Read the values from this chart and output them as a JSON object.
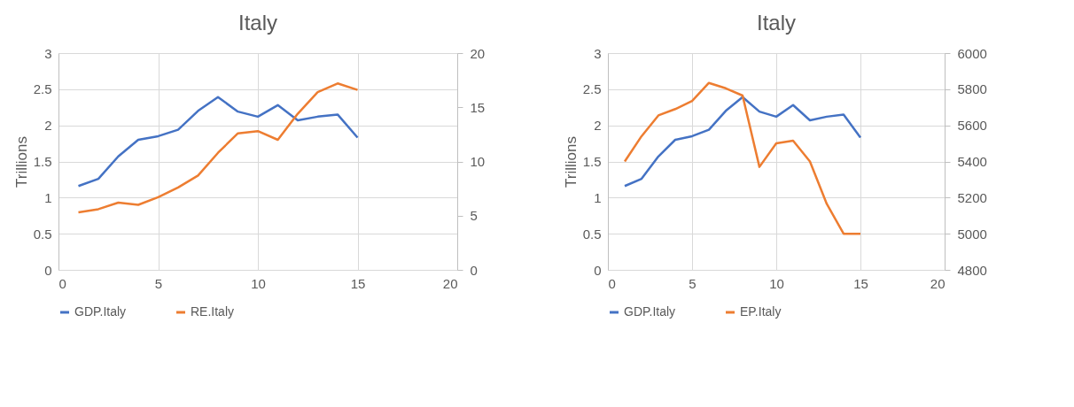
{
  "chart_data": [
    {
      "type": "line",
      "title": "Italy",
      "ylabel": "Trillions",
      "x": [
        1,
        2,
        3,
        4,
        5,
        6,
        7,
        8,
        9,
        10,
        11,
        12,
        13,
        14,
        15
      ],
      "series": [
        {
          "name": "GDP.Italy",
          "color": "#4472c4",
          "values": [
            1.16,
            1.26,
            1.57,
            1.8,
            1.85,
            1.94,
            2.2,
            2.39,
            2.19,
            2.12,
            2.28,
            2.07,
            2.12,
            2.15,
            1.83
          ]
        },
        {
          "name": "RE.Italy",
          "color": "#ed7d31",
          "axis": "y2",
          "values": [
            5.3,
            5.6,
            6.2,
            6.0,
            6.7,
            7.6,
            8.7,
            10.8,
            12.6,
            12.8,
            12.0,
            14.4,
            16.4,
            17.2,
            16.6
          ]
        }
      ],
      "xlim": [
        0,
        20
      ],
      "xticks": [
        0,
        5,
        10,
        15,
        20
      ],
      "ylim": [
        0,
        3
      ],
      "yticks": [
        0,
        0.5,
        1,
        1.5,
        2,
        2.5,
        3
      ],
      "y2lim": [
        0,
        20
      ],
      "y2ticks": [
        0,
        5,
        10,
        15,
        20
      ],
      "grid": true,
      "legend": "bottom"
    },
    {
      "type": "line",
      "title": "Italy",
      "ylabel": "Trillions",
      "x": [
        1,
        2,
        3,
        4,
        5,
        6,
        7,
        8,
        9,
        10,
        11,
        12,
        13,
        14,
        15
      ],
      "series": [
        {
          "name": "GDP.Italy",
          "color": "#4472c4",
          "values": [
            1.16,
            1.26,
            1.57,
            1.8,
            1.85,
            1.94,
            2.2,
            2.39,
            2.19,
            2.12,
            2.28,
            2.07,
            2.12,
            2.15,
            1.83
          ]
        },
        {
          "name": "EP.Italy",
          "color": "#ed7d31",
          "axis": "y2",
          "values": [
            5400,
            5540,
            5655,
            5690,
            5735,
            5835,
            5805,
            5765,
            5370,
            5500,
            5515,
            5400,
            5165,
            5000,
            5000
          ]
        }
      ],
      "xlim": [
        0,
        20
      ],
      "xticks": [
        0,
        5,
        10,
        15,
        20
      ],
      "ylim": [
        0,
        3
      ],
      "yticks": [
        0,
        0.5,
        1,
        1.5,
        2,
        2.5,
        3
      ],
      "y2lim": [
        4800,
        6000
      ],
      "y2ticks": [
        4800,
        5000,
        5200,
        5400,
        5600,
        5800,
        6000
      ],
      "grid": true,
      "legend": "bottom"
    }
  ]
}
